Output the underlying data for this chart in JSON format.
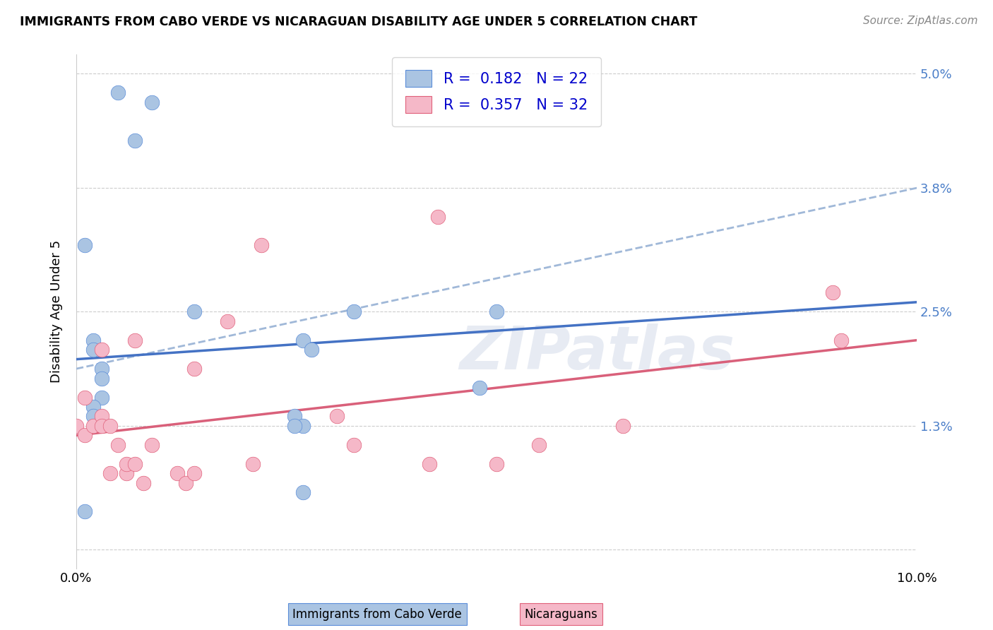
{
  "title": "IMMIGRANTS FROM CABO VERDE VS NICARAGUAN DISABILITY AGE UNDER 5 CORRELATION CHART",
  "source": "Source: ZipAtlas.com",
  "ylabel": "Disability Age Under 5",
  "xlim": [
    0.0,
    0.1
  ],
  "ylim": [
    -0.002,
    0.052
  ],
  "ytick_vals": [
    0.0,
    0.013,
    0.025,
    0.038,
    0.05
  ],
  "ytick_labels": [
    "",
    "1.3%",
    "2.5%",
    "3.8%",
    "5.0%"
  ],
  "xtick_vals": [
    0.0,
    0.01,
    0.02,
    0.03,
    0.04,
    0.05,
    0.06,
    0.07,
    0.08,
    0.09,
    0.1
  ],
  "xtick_labels": [
    "0.0%",
    "",
    "",
    "",
    "",
    "",
    "",
    "",
    "",
    "",
    "10.0%"
  ],
  "cabo_verde_x": [
    0.005,
    0.009,
    0.007,
    0.001,
    0.002,
    0.002,
    0.003,
    0.003,
    0.003,
    0.002,
    0.002,
    0.014,
    0.027,
    0.028,
    0.026,
    0.027,
    0.026,
    0.027,
    0.05,
    0.048,
    0.033,
    0.001
  ],
  "cabo_verde_y": [
    0.048,
    0.047,
    0.043,
    0.032,
    0.022,
    0.021,
    0.019,
    0.018,
    0.016,
    0.015,
    0.014,
    0.025,
    0.022,
    0.021,
    0.014,
    0.013,
    0.013,
    0.006,
    0.025,
    0.017,
    0.025,
    0.004
  ],
  "nicaraguan_x": [
    0.0,
    0.001,
    0.001,
    0.002,
    0.003,
    0.003,
    0.003,
    0.004,
    0.004,
    0.005,
    0.006,
    0.006,
    0.007,
    0.007,
    0.008,
    0.009,
    0.012,
    0.013,
    0.014,
    0.014,
    0.018,
    0.021,
    0.022,
    0.031,
    0.033,
    0.042,
    0.043,
    0.05,
    0.055,
    0.065,
    0.09,
    0.091
  ],
  "nicaraguan_y": [
    0.013,
    0.012,
    0.016,
    0.013,
    0.014,
    0.021,
    0.013,
    0.013,
    0.008,
    0.011,
    0.008,
    0.009,
    0.009,
    0.022,
    0.007,
    0.011,
    0.008,
    0.007,
    0.019,
    0.008,
    0.024,
    0.009,
    0.032,
    0.014,
    0.011,
    0.009,
    0.035,
    0.009,
    0.011,
    0.013,
    0.027,
    0.022
  ],
  "cabo_verde_R": 0.182,
  "cabo_verde_N": 22,
  "nicaraguan_R": 0.357,
  "nicaraguan_N": 32,
  "cabo_verde_fill": "#aac4e2",
  "cabo_verde_edge": "#5b8dd9",
  "nicaraguan_fill": "#f5b8c8",
  "nicaraguan_edge": "#e0607a",
  "cabo_verde_line_color": "#4472c4",
  "nicaraguan_line_color": "#d9607a",
  "dashed_line_color": "#a0b8d8",
  "trendline_cabo_x0": 0.0,
  "trendline_cabo_x1": 0.1,
  "trendline_cabo_y0": 0.02,
  "trendline_cabo_y1": 0.026,
  "trendline_nic_x0": 0.0,
  "trendline_nic_x1": 0.1,
  "trendline_nic_y0": 0.012,
  "trendline_nic_y1": 0.022,
  "trendline_dashed_x0": 0.0,
  "trendline_dashed_x1": 0.1,
  "trendline_dashed_y0": 0.019,
  "trendline_dashed_y1": 0.038,
  "legend_text_color": "#0000cc",
  "background_color": "#ffffff",
  "grid_color": "#cccccc",
  "watermark": "ZIPatlas"
}
